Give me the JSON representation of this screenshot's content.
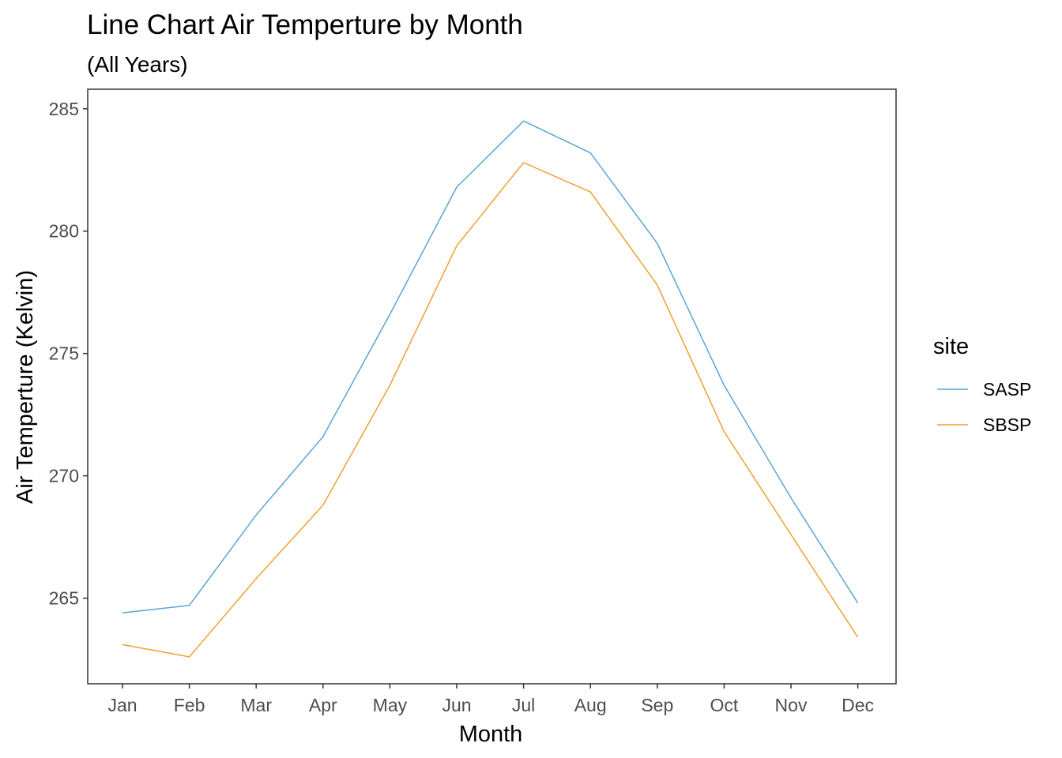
{
  "chart_data": {
    "type": "line",
    "title": "Line Chart Air Temperture by Month",
    "subtitle": "(All Years)",
    "xlabel": "Month",
    "ylabel": "Air Temperture (Kelvin)",
    "categories": [
      "Jan",
      "Feb",
      "Mar",
      "Apr",
      "May",
      "Jun",
      "Jul",
      "Aug",
      "Sep",
      "Oct",
      "Nov",
      "Dec"
    ],
    "ylim": [
      261.5,
      285.8
    ],
    "yticks": [
      265,
      270,
      275,
      280,
      285
    ],
    "grid": false,
    "legend": {
      "title": "site",
      "placement": "right"
    },
    "series": [
      {
        "name": "SASP",
        "color": "#5aa5d6",
        "values": [
          264.4,
          264.7,
          268.4,
          271.6,
          276.6,
          281.8,
          284.5,
          283.2,
          279.5,
          273.7,
          269.1,
          264.8
        ]
      },
      {
        "name": "SBSP",
        "color": "#f0a030",
        "values": [
          263.1,
          262.6,
          265.8,
          268.8,
          273.7,
          279.4,
          282.8,
          281.6,
          277.8,
          271.8,
          267.6,
          263.4
        ]
      }
    ]
  }
}
